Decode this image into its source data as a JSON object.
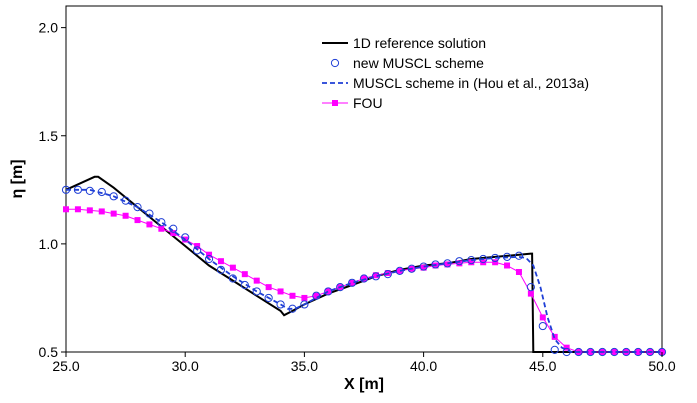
{
  "chart_data": {
    "type": "line",
    "xlabel": "X [m]",
    "ylabel": "η [m]",
    "xlim": [
      25.0,
      50.0
    ],
    "ylim": [
      0.5,
      2.1
    ],
    "xticks": [
      "25.0",
      "30.0",
      "35.0",
      "40.0",
      "45.0",
      "50.0"
    ],
    "yticks": [
      "0.5",
      "1.0",
      "1.5",
      "2.0"
    ],
    "grid": false,
    "legend_position": "top-right",
    "series": [
      {
        "name": "1D reference solution",
        "style": "solid",
        "color": "#000000",
        "x": [
          25.0,
          25.6,
          26.2,
          26.35,
          27.0,
          28.0,
          29.0,
          30.0,
          31.0,
          32.0,
          33.0,
          34.0,
          34.15,
          34.5,
          35.0,
          36.0,
          37.0,
          38.0,
          39.0,
          40.0,
          41.0,
          42.0,
          43.0,
          44.0,
          44.5,
          44.55,
          44.6,
          45.0,
          46.0,
          47.0,
          48.0,
          49.0,
          50.0
        ],
        "y": [
          1.25,
          1.28,
          1.31,
          1.31,
          1.26,
          1.17,
          1.08,
          0.99,
          0.9,
          0.83,
          0.76,
          0.69,
          0.67,
          0.69,
          0.72,
          0.77,
          0.81,
          0.85,
          0.88,
          0.9,
          0.91,
          0.93,
          0.94,
          0.95,
          0.955,
          0.955,
          0.5,
          0.5,
          0.5,
          0.5,
          0.5,
          0.5,
          0.5
        ]
      },
      {
        "name": "new MUSCL scheme",
        "style": "markers-circle",
        "color": "#1f3fd6",
        "x": [
          25.0,
          25.5,
          26.0,
          26.5,
          27.0,
          27.5,
          28.0,
          28.5,
          29.0,
          29.5,
          30.0,
          30.5,
          31.0,
          31.5,
          32.0,
          32.5,
          33.0,
          33.5,
          34.0,
          34.5,
          35.0,
          35.5,
          36.0,
          36.5,
          37.0,
          37.5,
          38.0,
          38.5,
          39.0,
          39.5,
          40.0,
          40.5,
          41.0,
          41.5,
          42.0,
          42.5,
          43.0,
          43.5,
          44.0,
          44.5,
          45.0,
          45.5,
          46.0,
          46.5,
          47.0,
          47.5,
          48.0,
          48.5,
          49.0,
          49.5,
          50.0
        ],
        "y": [
          1.25,
          1.25,
          1.245,
          1.24,
          1.22,
          1.2,
          1.17,
          1.14,
          1.1,
          1.07,
          1.03,
          0.97,
          0.93,
          0.88,
          0.84,
          0.81,
          0.78,
          0.75,
          0.72,
          0.7,
          0.72,
          0.76,
          0.78,
          0.8,
          0.82,
          0.84,
          0.85,
          0.86,
          0.875,
          0.885,
          0.895,
          0.905,
          0.91,
          0.92,
          0.925,
          0.93,
          0.935,
          0.94,
          0.945,
          0.8,
          0.62,
          0.51,
          0.5,
          0.5,
          0.5,
          0.5,
          0.5,
          0.5,
          0.5,
          0.5,
          0.5
        ]
      },
      {
        "name": "MUSCL scheme in (Hou et al., 2013a)",
        "style": "dashed",
        "color": "#1f3fd6",
        "x": [
          25.0,
          26.0,
          27.0,
          28.0,
          29.0,
          30.0,
          31.0,
          32.0,
          33.0,
          34.0,
          34.3,
          34.6,
          35.0,
          36.0,
          37.0,
          38.0,
          39.0,
          40.0,
          41.0,
          42.0,
          43.0,
          44.0,
          44.3,
          44.6,
          44.9,
          45.2,
          45.5,
          45.8,
          46.2,
          47.0,
          48.0,
          49.0,
          50.0
        ],
        "y": [
          1.25,
          1.25,
          1.22,
          1.17,
          1.1,
          1.02,
          0.93,
          0.85,
          0.78,
          0.72,
          0.7,
          0.7,
          0.72,
          0.78,
          0.82,
          0.85,
          0.875,
          0.895,
          0.91,
          0.925,
          0.935,
          0.94,
          0.935,
          0.9,
          0.8,
          0.66,
          0.56,
          0.52,
          0.5,
          0.5,
          0.5,
          0.5,
          0.5
        ]
      },
      {
        "name": "FOU",
        "style": "line-markers-square",
        "color": "#ff00ff",
        "x": [
          25.0,
          25.5,
          26.0,
          26.5,
          27.0,
          27.5,
          28.0,
          28.5,
          29.0,
          29.5,
          30.0,
          30.5,
          31.0,
          31.5,
          32.0,
          32.5,
          33.0,
          33.5,
          34.0,
          34.5,
          35.0,
          35.5,
          36.0,
          36.5,
          37.0,
          37.5,
          38.0,
          38.5,
          39.0,
          39.5,
          40.0,
          40.5,
          41.0,
          41.5,
          42.0,
          42.5,
          43.0,
          43.5,
          44.0,
          44.5,
          45.0,
          45.5,
          46.0,
          46.5,
          47.0,
          47.5,
          48.0,
          48.5,
          49.0,
          49.5,
          50.0
        ],
        "y": [
          1.16,
          1.16,
          1.155,
          1.15,
          1.14,
          1.13,
          1.11,
          1.09,
          1.07,
          1.05,
          1.02,
          0.99,
          0.95,
          0.92,
          0.89,
          0.86,
          0.83,
          0.8,
          0.78,
          0.76,
          0.75,
          0.76,
          0.78,
          0.8,
          0.82,
          0.84,
          0.855,
          0.865,
          0.875,
          0.885,
          0.89,
          0.9,
          0.905,
          0.91,
          0.915,
          0.915,
          0.915,
          0.9,
          0.87,
          0.77,
          0.66,
          0.57,
          0.52,
          0.5,
          0.5,
          0.5,
          0.5,
          0.5,
          0.5,
          0.5,
          0.5
        ]
      }
    ]
  }
}
